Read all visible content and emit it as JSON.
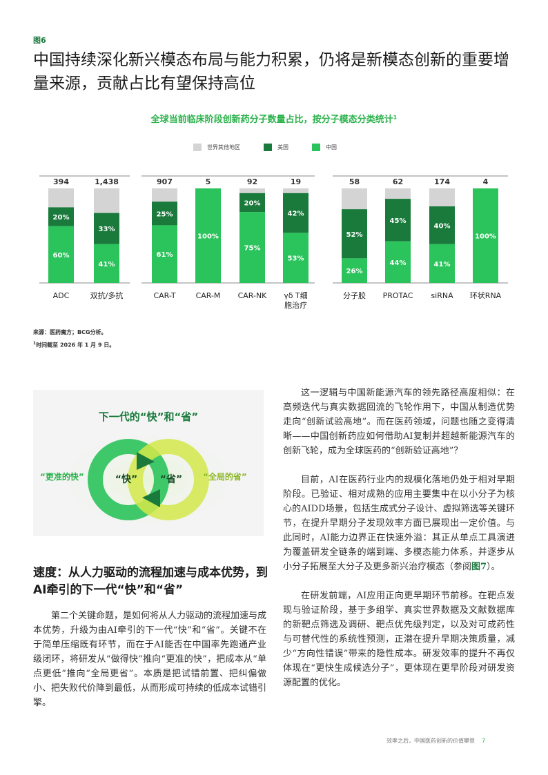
{
  "figure_label": "图6",
  "title": "中国持续深化新兴模态布局与能力积累，仍将是新模态创新的重要增量来源，贡献占比有望保持高位",
  "chart_title": "全球当前临床阶段创新药分子数量占比，按分子模态分类统计¹",
  "legend": [
    {
      "label": "世界其他地区",
      "color": "#d4d4d4"
    },
    {
      "label": "美国",
      "color": "#1a7a3c"
    },
    {
      "label": "中国",
      "color": "#2bc35b"
    }
  ],
  "chart_data": {
    "type": "bar",
    "stacked": true,
    "unit": "%",
    "groups": [
      [
        {
          "category": "ADC",
          "total": "394",
          "china": 60,
          "us": 20,
          "china_label": "60%",
          "us_label": "20%"
        },
        {
          "category": "双抗/多抗",
          "total": "1,438",
          "china": 41,
          "us": 33,
          "china_label": "41%",
          "us_label": "33%"
        }
      ],
      [
        {
          "category": "CAR-T",
          "total": "907",
          "china": 61,
          "us": 25,
          "china_label": "61%",
          "us_label": "25%"
        },
        {
          "category": "CAR-M",
          "total": "5",
          "china": 100,
          "us": 0,
          "china_label": "100%",
          "us_label": ""
        },
        {
          "category": "CAR-NK",
          "total": "92",
          "china": 75,
          "us": 20,
          "china_label": "75%",
          "us_label": "20%"
        },
        {
          "category": "γδ T细胞治疗",
          "total": "19",
          "china": 53,
          "us": 42,
          "china_label": "53%",
          "us_label": "42%"
        }
      ],
      [
        {
          "category": "分子胶",
          "total": "58",
          "china": 26,
          "us": 52,
          "china_label": "26%",
          "us_label": "52%"
        },
        {
          "category": "PROTAC",
          "total": "62",
          "china": 44,
          "us": 45,
          "china_label": "44%",
          "us_label": "45%"
        },
        {
          "category": "siRNA",
          "total": "174",
          "china": 41,
          "us": 40,
          "china_label": "41%",
          "us_label": "40%"
        },
        {
          "category": "环状RNA",
          "total": "4",
          "china": 100,
          "us": 0,
          "china_label": "100%",
          "us_label": ""
        }
      ]
    ]
  },
  "source": {
    "line1": "来源：医药魔方；BCG分析。",
    "footnote_mark": "1",
    "line2": "时间截至 2026 年 1 月 9 日。"
  },
  "illustration": {
    "title": "下一代的“快”和“省”",
    "left_label": "“更准的快”",
    "right_label": "“全局的省”",
    "left_ring": "“快”",
    "right_ring": "“省”"
  },
  "section_heading": "速度：从人力驱动的流程加速与成本优势，到AI牵引的下一代“快”和“省”",
  "left_paragraphs": [
    "第二个关键命题，是如何将从人力驱动的流程加速与成本优势，升级为由AI牵引的下一代“快”和“省”。关键不在于简单压缩既有环节，而在于AI能否在中国率先跑通产业级闭环，将研发从“做得快”推向“更准的快”，把成本从“单点更低”推向“全局更省”。本质是把试错前置、把纠偏做小、把失败代价降到最低，从而形成可持续的低成本试错引擎。"
  ],
  "right_paragraphs": [
    {
      "text": "这一逻辑与中国新能源汽车的领先路径高度相似：在高频迭代与真实数据回流的飞轮作用下，中国从制造优势走向“创新试验高地”。而在医药领域，问题也随之变得清晰——中国创新药应如何借助AI复制并超越新能源汽车的创新飞轮，成为全球医药的“创新验证高地”？"
    },
    {
      "text": "目前，AI在医药行业内的规模化落地仍处于相对早期阶段。已验证、相对成熟的应用主要集中在以小分子为核心的AIDD场景，包括生成式分子设计、虚拟筛选等关键环节，在提升早期分子发现效率方面已展现出一定价值。与此同时，AI能力边界正在快速外溢：其正从单点工具演进为覆盖研发全链条的端到端、多模态能力体系，并逐步从小分子拓展至大分子及更多新兴治疗模态（参阅",
      "ref": "图7",
      "tail": "）。"
    },
    {
      "text": "在研发前端，AI应用正向更早期环节前移。在靶点发现与验证阶段，基于多组学、真实世界数据及文献数据库的新靶点筛选及调研、靶点优先级判定，以及对可成药性与可替代性的系统性预测，正潜在提升早期决策质量，减少“方向性错误”带来的隐性成本。研发效率的提升不再仅体现在“更快生成候选分子”，更体现在更早阶段对研发资源配置的优化。"
    }
  ],
  "footer": {
    "text": "效率之后，中国医药创新的价值攀登",
    "page": "7"
  }
}
